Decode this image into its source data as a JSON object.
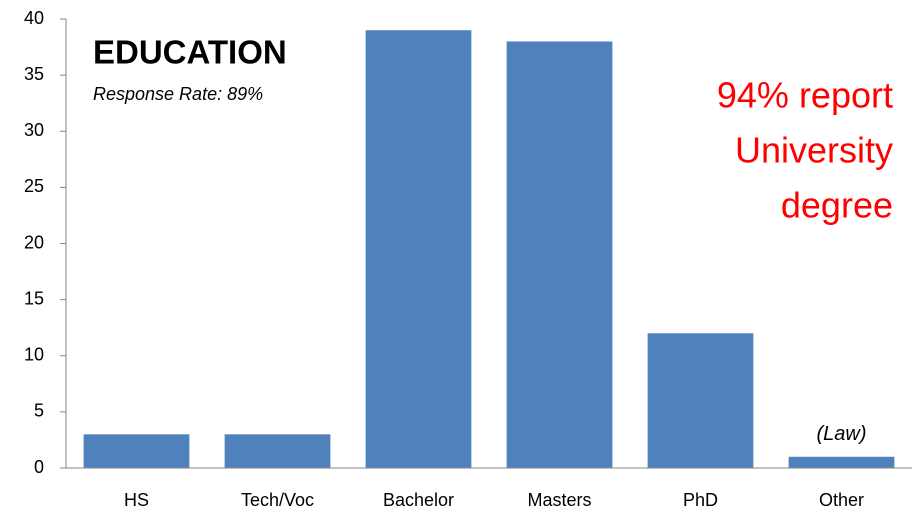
{
  "chart_data": {
    "type": "bar",
    "title": "EDUCATION",
    "subtitle": "Response Rate: 89%",
    "callout": [
      "94% report",
      "University",
      "degree"
    ],
    "callout_color": "#ff0000",
    "bar_note": "(Law)",
    "categories": [
      "HS",
      "Tech/Voc",
      "Bachelor",
      "Masters",
      "PhD",
      "Other"
    ],
    "values": [
      3,
      3,
      39,
      38,
      12,
      1
    ],
    "color": "#4f81bd",
    "ylim": [
      0,
      40
    ],
    "yticks": [
      0,
      5,
      10,
      15,
      20,
      25,
      30,
      35,
      40
    ],
    "grid": false
  }
}
